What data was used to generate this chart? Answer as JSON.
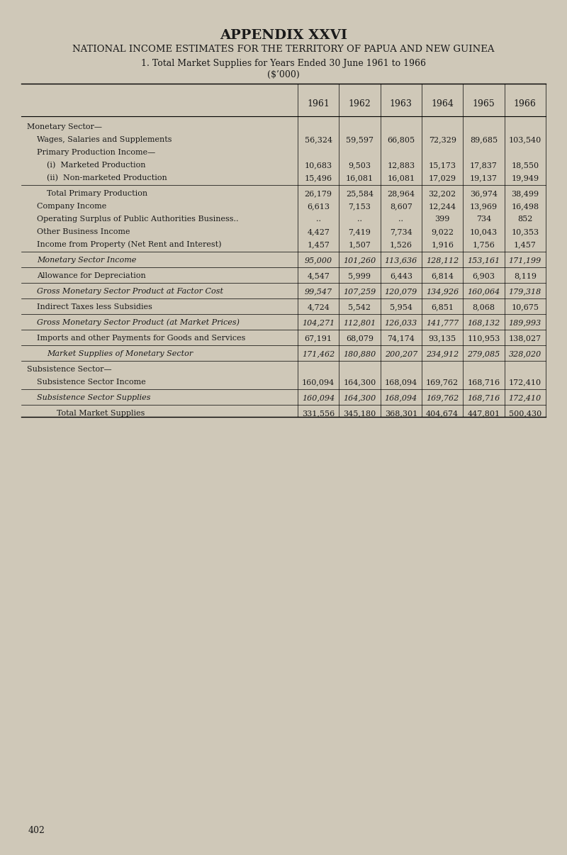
{
  "title1": "APPENDIX XXVI",
  "title2": "NATIONAL INCOME ESTIMATES FOR THE TERRITORY OF PAPUA AND NEW GUINEA",
  "title3": "1. Total Market Supplies for Years Ended 30 June 1961 to 1966",
  "title4": "($’000)",
  "bg_color": "#cfc8b8",
  "page_number": "402",
  "years": [
    "1961",
    "1962",
    "1963",
    "1964",
    "1965",
    "1966"
  ],
  "rows": [
    {
      "label": "Monetary Sector—",
      "indent": 0,
      "italic": false,
      "values": [
        "",
        "",
        "",
        "",
        "",
        ""
      ],
      "spacer": false
    },
    {
      "label": "Wages, Salaries and Supplements",
      "indent": 1,
      "italic": false,
      "values": [
        "56,324",
        "59,597",
        "66,805",
        "72,329",
        "89,685",
        "103,540"
      ],
      "spacer": false
    },
    {
      "label": "Primary Production Income—",
      "indent": 1,
      "italic": false,
      "values": [
        "",
        "",
        "",
        "",
        "",
        ""
      ],
      "spacer": false
    },
    {
      "label": "(i)  Marketed Production",
      "indent": 2,
      "italic": false,
      "values": [
        "10,683",
        "9,503",
        "12,883",
        "15,173",
        "17,837",
        "18,550"
      ],
      "spacer": false
    },
    {
      "label": "(ii)  Non-marketed Production",
      "indent": 2,
      "italic": false,
      "values": [
        "15,496",
        "16,081",
        "16,081",
        "17,029",
        "19,137",
        "19,949"
      ],
      "spacer": true
    },
    {
      "label": "        Total Primary Production",
      "indent": 0,
      "italic": false,
      "values": [
        "26,179",
        "25,584",
        "28,964",
        "32,202",
        "36,974",
        "38,499"
      ],
      "spacer": false
    },
    {
      "label": "Company Income",
      "indent": 1,
      "italic": false,
      "values": [
        "6,613",
        "7,153",
        "8,607",
        "12,244",
        "13,969",
        "16,498"
      ],
      "spacer": false
    },
    {
      "label": "Operating Surplus of Public Authorities Business..",
      "indent": 1,
      "italic": false,
      "values": [
        "..",
        "..",
        "..",
        "399",
        "734",
        "852"
      ],
      "spacer": false
    },
    {
      "label": "Other Business Income",
      "indent": 1,
      "italic": false,
      "values": [
        "4,427",
        "7,419",
        "7,734",
        "9,022",
        "10,043",
        "10,353"
      ],
      "spacer": false
    },
    {
      "label": "Income from Property (Net Rent and Interest)",
      "indent": 1,
      "italic": false,
      "values": [
        "1,457",
        "1,507",
        "1,526",
        "1,916",
        "1,756",
        "1,457"
      ],
      "spacer": true
    },
    {
      "label": "Monetary Sector Income",
      "indent": 1,
      "italic": true,
      "values": [
        "95,000",
        "101,260",
        "113,636",
        "128,112",
        "153,161",
        "171,199"
      ],
      "spacer": true
    },
    {
      "label": "Allowance for Depreciation",
      "indent": 1,
      "italic": false,
      "values": [
        "4,547",
        "5,999",
        "6,443",
        "6,814",
        "6,903",
        "8,119"
      ],
      "spacer": true
    },
    {
      "label": "Gross Monetary Sector Product at Factor Cost",
      "indent": 1,
      "italic": true,
      "values": [
        "99,547",
        "107,259",
        "120,079",
        "134,926",
        "160,064",
        "179,318"
      ],
      "spacer": true
    },
    {
      "label": "Indirect Taxes less Subsidies",
      "indent": 1,
      "italic": false,
      "values": [
        "4,724",
        "5,542",
        "5,954",
        "6,851",
        "8,068",
        "10,675"
      ],
      "spacer": true
    },
    {
      "label": "Gross Monetary Sector Product (at Market Prices)",
      "indent": 1,
      "italic": true,
      "values": [
        "104,271",
        "112,801",
        "126,033",
        "141,777",
        "168,132",
        "189,993"
      ],
      "spacer": true
    },
    {
      "label": "Imports and other Payments for Goods and Services",
      "indent": 1,
      "italic": false,
      "values": [
        "67,191",
        "68,079",
        "74,174",
        "93,135",
        "110,953",
        "138,027"
      ],
      "spacer": true
    },
    {
      "label": "Market Supplies of Monetary Sector",
      "indent": 2,
      "italic": true,
      "values": [
        "171,462",
        "180,880",
        "200,207",
        "234,912",
        "279,085",
        "328,020"
      ],
      "spacer": true
    },
    {
      "label": "Subsistence Sector—",
      "indent": 0,
      "italic": false,
      "values": [
        "",
        "",
        "",
        "",
        "",
        ""
      ],
      "spacer": false
    },
    {
      "label": "Subsistence Sector Income",
      "indent": 1,
      "italic": false,
      "values": [
        "160,094",
        "164,300",
        "168,094",
        "169,762",
        "168,716",
        "172,410"
      ],
      "spacer": true
    },
    {
      "label": "Subsistence Sector Supplies",
      "indent": 1,
      "italic": true,
      "values": [
        "160,094",
        "164,300",
        "168,094",
        "169,762",
        "168,716",
        "172,410"
      ],
      "spacer": true
    },
    {
      "label": "        Total Market Supplies",
      "indent": 1,
      "italic": false,
      "values": [
        "331,556",
        "345,180",
        "368,301",
        "404,674",
        "447,801",
        "500,430"
      ],
      "spacer": false
    }
  ]
}
